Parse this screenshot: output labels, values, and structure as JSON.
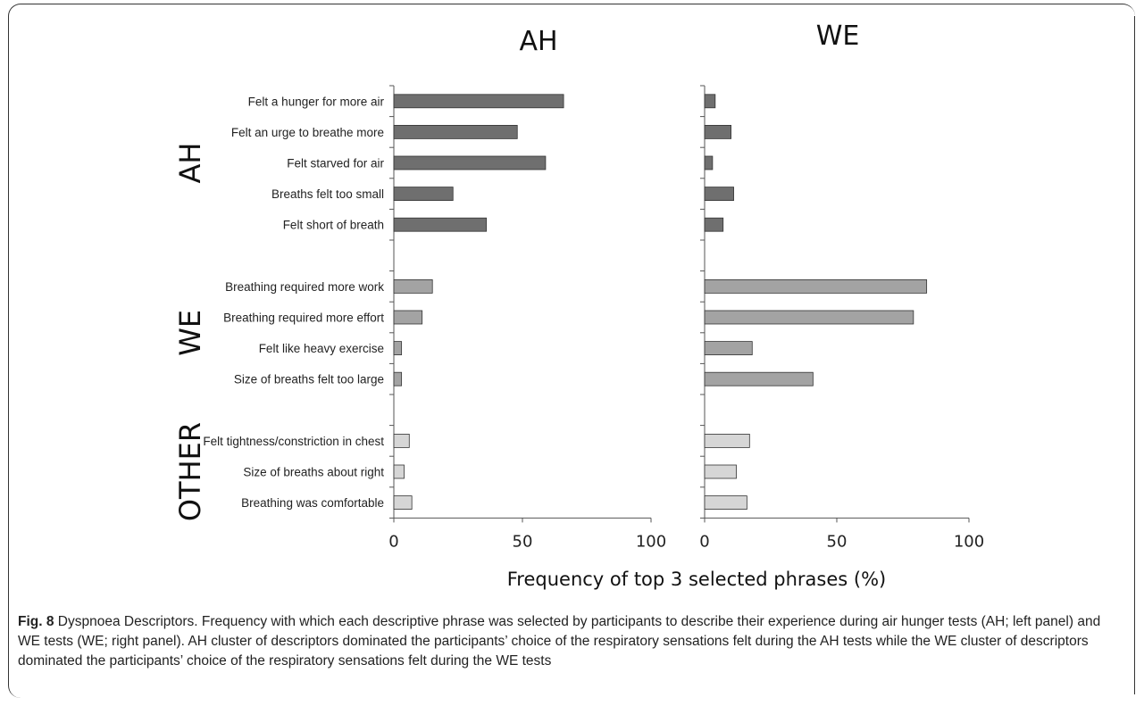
{
  "chart_data": [
    {
      "type": "bar",
      "orientation": "horizontal",
      "panel": "left",
      "title": "AH",
      "xlim": [
        0,
        100
      ],
      "xticks": [
        "0",
        "50",
        "100"
      ],
      "groups": [
        {
          "label": "AH",
          "categories": [
            "Felt a hunger for more air",
            "Felt an urge to breathe more",
            "Felt starved for air",
            "Breaths felt too small",
            "Felt short of breath"
          ]
        },
        {
          "label": "WE",
          "categories": [
            "Breathing required more work",
            "Breathing required more effort",
            "Felt like heavy exercise",
            "Size of breaths felt too large"
          ]
        },
        {
          "label": "OTHER",
          "categories": [
            "Felt tightness/constriction in chest",
            "Size of breaths about right",
            "Breathing was comfortable"
          ]
        }
      ],
      "values": [
        66,
        48,
        59,
        23,
        36,
        15,
        11,
        3,
        3,
        6,
        4,
        7
      ],
      "colors": [
        "#6f6f6f",
        "#6f6f6f",
        "#6f6f6f",
        "#6f6f6f",
        "#6f6f6f",
        "#a3a3a3",
        "#a3a3a3",
        "#a3a3a3",
        "#a3a3a3",
        "#d6d6d6",
        "#d6d6d6",
        "#d6d6d6"
      ]
    },
    {
      "type": "bar",
      "orientation": "horizontal",
      "panel": "right",
      "title": "WE",
      "xlim": [
        0,
        100
      ],
      "xticks": [
        "0",
        "50",
        "100"
      ],
      "values": [
        4,
        10,
        3,
        11,
        7,
        84,
        79,
        18,
        41,
        17,
        12,
        16
      ],
      "colors": [
        "#6f6f6f",
        "#6f6f6f",
        "#6f6f6f",
        "#6f6f6f",
        "#6f6f6f",
        "#a3a3a3",
        "#a3a3a3",
        "#a3a3a3",
        "#a3a3a3",
        "#d6d6d6",
        "#d6d6d6",
        "#d6d6d6"
      ]
    }
  ],
  "xlabel": "Frequency of top 3 selected phrases (%)",
  "caption": {
    "fig_label": "Fig. 8",
    "text": " Dyspnoea Descriptors. Frequency with which each descriptive phrase was selected by participants to describe their experience during air hunger tests (AH; left panel) and WE tests (WE; right panel). AH cluster of descriptors dominated the participants’ choice of the respiratory sensations felt during the AH tests while the WE cluster of descriptors dominated the participants’ choice of the respiratory sensations felt during the WE tests"
  }
}
